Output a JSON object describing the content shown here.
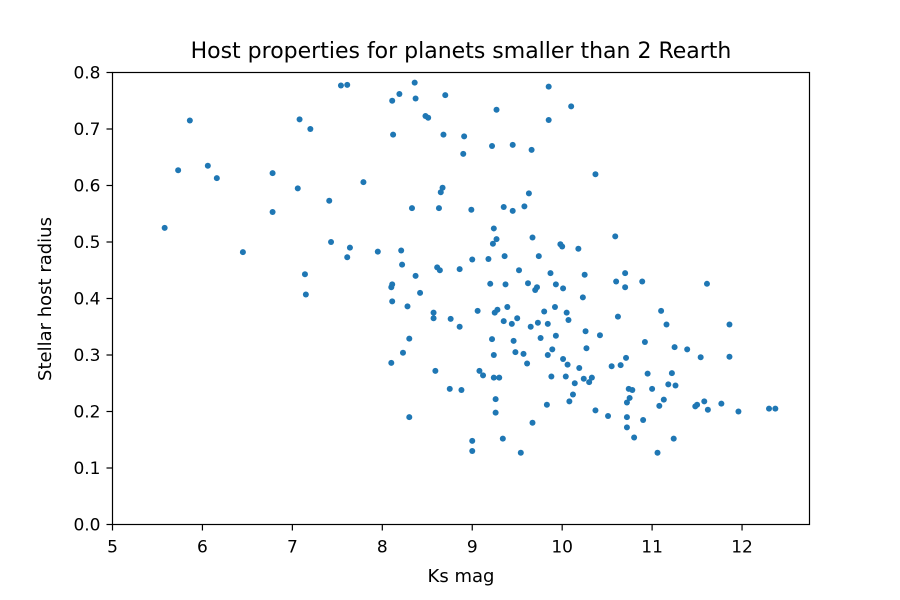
{
  "chart_data": {
    "type": "scatter",
    "title": "Host properties for planets smaller than 2 Rearth",
    "xlabel": "Ks mag",
    "ylabel": "Stellar host radius",
    "xlim": [
      5,
      12.75
    ],
    "ylim": [
      0,
      0.8
    ],
    "xticks": [
      5,
      6,
      7,
      8,
      9,
      10,
      11,
      12
    ],
    "yticks": [
      0.0,
      0.1,
      0.2,
      0.3,
      0.4,
      0.5,
      0.6,
      0.7,
      0.8
    ],
    "xtick_labels": [
      "5",
      "6",
      "7",
      "8",
      "9",
      "10",
      "11",
      "12"
    ],
    "ytick_labels": [
      "0.0",
      "0.1",
      "0.2",
      "0.3",
      "0.4",
      "0.5",
      "0.6",
      "0.7",
      "0.8"
    ],
    "grid": false,
    "color": "#1f77b4",
    "points": [
      [
        5.58,
        0.525
      ],
      [
        5.73,
        0.627
      ],
      [
        5.86,
        0.715
      ],
      [
        6.06,
        0.635
      ],
      [
        6.16,
        0.613
      ],
      [
        6.45,
        0.482
      ],
      [
        6.78,
        0.622
      ],
      [
        6.78,
        0.553
      ],
      [
        7.06,
        0.595
      ],
      [
        7.08,
        0.717
      ],
      [
        7.14,
        0.443
      ],
      [
        7.15,
        0.407
      ],
      [
        7.2,
        0.7
      ],
      [
        7.41,
        0.573
      ],
      [
        7.43,
        0.5
      ],
      [
        7.54,
        0.777
      ],
      [
        7.61,
        0.778
      ],
      [
        7.61,
        0.473
      ],
      [
        7.64,
        0.49
      ],
      [
        7.79,
        0.606
      ],
      [
        7.95,
        0.483
      ],
      [
        8.11,
        0.75
      ],
      [
        8.12,
        0.69
      ],
      [
        8.1,
        0.42
      ],
      [
        8.11,
        0.425
      ],
      [
        8.11,
        0.395
      ],
      [
        8.1,
        0.286
      ],
      [
        8.19,
        0.762
      ],
      [
        8.21,
        0.485
      ],
      [
        8.22,
        0.46
      ],
      [
        8.23,
        0.304
      ],
      [
        8.28,
        0.386
      ],
      [
        8.3,
        0.329
      ],
      [
        8.3,
        0.19
      ],
      [
        8.33,
        0.56
      ],
      [
        8.36,
        0.782
      ],
      [
        8.37,
        0.754
      ],
      [
        8.37,
        0.44
      ],
      [
        8.42,
        0.41
      ],
      [
        8.48,
        0.723
      ],
      [
        8.51,
        0.72
      ],
      [
        8.57,
        0.375
      ],
      [
        8.57,
        0.365
      ],
      [
        8.59,
        0.272
      ],
      [
        8.61,
        0.455
      ],
      [
        8.63,
        0.56
      ],
      [
        8.64,
        0.45
      ],
      [
        8.65,
        0.588
      ],
      [
        8.67,
        0.596
      ],
      [
        8.68,
        0.69
      ],
      [
        8.7,
        0.76
      ],
      [
        8.75,
        0.24
      ],
      [
        8.76,
        0.364
      ],
      [
        8.86,
        0.35
      ],
      [
        8.86,
        0.452
      ],
      [
        8.88,
        0.238
      ],
      [
        8.9,
        0.656
      ],
      [
        8.91,
        0.687
      ],
      [
        8.99,
        0.557
      ],
      [
        9.0,
        0.469
      ],
      [
        9.0,
        0.148
      ],
      [
        9.0,
        0.13
      ],
      [
        9.06,
        0.378
      ],
      [
        9.08,
        0.272
      ],
      [
        9.12,
        0.264
      ],
      [
        9.18,
        0.47
      ],
      [
        9.2,
        0.426
      ],
      [
        9.22,
        0.67
      ],
      [
        9.22,
        0.328
      ],
      [
        9.23,
        0.497
      ],
      [
        9.24,
        0.524
      ],
      [
        9.24,
        0.3
      ],
      [
        9.24,
        0.26
      ],
      [
        9.25,
        0.375
      ],
      [
        9.26,
        0.222
      ],
      [
        9.26,
        0.198
      ],
      [
        9.27,
        0.734
      ],
      [
        9.27,
        0.505
      ],
      [
        9.28,
        0.38
      ],
      [
        9.3,
        0.26
      ],
      [
        9.34,
        0.152
      ],
      [
        9.35,
        0.562
      ],
      [
        9.35,
        0.36
      ],
      [
        9.36,
        0.475
      ],
      [
        9.37,
        0.425
      ],
      [
        9.39,
        0.385
      ],
      [
        9.44,
        0.355
      ],
      [
        9.45,
        0.672
      ],
      [
        9.45,
        0.555
      ],
      [
        9.46,
        0.325
      ],
      [
        9.48,
        0.305
      ],
      [
        9.5,
        0.365
      ],
      [
        9.52,
        0.45
      ],
      [
        9.54,
        0.127
      ],
      [
        9.57,
        0.302
      ],
      [
        9.58,
        0.563
      ],
      [
        9.61,
        0.285
      ],
      [
        9.62,
        0.427
      ],
      [
        9.63,
        0.586
      ],
      [
        9.65,
        0.35
      ],
      [
        9.66,
        0.663
      ],
      [
        9.67,
        0.508
      ],
      [
        9.67,
        0.18
      ],
      [
        9.7,
        0.415
      ],
      [
        9.72,
        0.42
      ],
      [
        9.73,
        0.357
      ],
      [
        9.74,
        0.475
      ],
      [
        9.76,
        0.33
      ],
      [
        9.8,
        0.377
      ],
      [
        9.83,
        0.212
      ],
      [
        9.84,
        0.355
      ],
      [
        9.84,
        0.3
      ],
      [
        9.85,
        0.775
      ],
      [
        9.85,
        0.716
      ],
      [
        9.87,
        0.445
      ],
      [
        9.88,
        0.262
      ],
      [
        9.89,
        0.31
      ],
      [
        9.92,
        0.385
      ],
      [
        9.93,
        0.425
      ],
      [
        9.93,
        0.334
      ],
      [
        9.98,
        0.496
      ],
      [
        10.0,
        0.492
      ],
      [
        10.01,
        0.418
      ],
      [
        10.01,
        0.293
      ],
      [
        10.04,
        0.262
      ],
      [
        10.05,
        0.375
      ],
      [
        10.06,
        0.283
      ],
      [
        10.07,
        0.362
      ],
      [
        10.08,
        0.218
      ],
      [
        10.1,
        0.74
      ],
      [
        10.12,
        0.23
      ],
      [
        10.14,
        0.25
      ],
      [
        10.18,
        0.488
      ],
      [
        10.19,
        0.277
      ],
      [
        10.23,
        0.402
      ],
      [
        10.24,
        0.258
      ],
      [
        10.25,
        0.442
      ],
      [
        10.26,
        0.342
      ],
      [
        10.27,
        0.312
      ],
      [
        10.3,
        0.252
      ],
      [
        10.33,
        0.26
      ],
      [
        10.37,
        0.62
      ],
      [
        10.37,
        0.202
      ],
      [
        10.42,
        0.335
      ],
      [
        10.51,
        0.192
      ],
      [
        10.55,
        0.28
      ],
      [
        10.59,
        0.51
      ],
      [
        10.6,
        0.43
      ],
      [
        10.62,
        0.368
      ],
      [
        10.65,
        0.282
      ],
      [
        10.7,
        0.445
      ],
      [
        10.7,
        0.42
      ],
      [
        10.71,
        0.295
      ],
      [
        10.72,
        0.216
      ],
      [
        10.72,
        0.19
      ],
      [
        10.72,
        0.172
      ],
      [
        10.74,
        0.24
      ],
      [
        10.75,
        0.224
      ],
      [
        10.78,
        0.238
      ],
      [
        10.8,
        0.154
      ],
      [
        10.89,
        0.43
      ],
      [
        10.9,
        0.185
      ],
      [
        10.92,
        0.323
      ],
      [
        10.95,
        0.267
      ],
      [
        11.0,
        0.24
      ],
      [
        11.06,
        0.127
      ],
      [
        11.08,
        0.21
      ],
      [
        11.1,
        0.378
      ],
      [
        11.13,
        0.221
      ],
      [
        11.16,
        0.354
      ],
      [
        11.18,
        0.248
      ],
      [
        11.22,
        0.268
      ],
      [
        11.24,
        0.152
      ],
      [
        11.25,
        0.314
      ],
      [
        11.26,
        0.246
      ],
      [
        11.39,
        0.31
      ],
      [
        11.48,
        0.209
      ],
      [
        11.5,
        0.212
      ],
      [
        11.54,
        0.296
      ],
      [
        11.58,
        0.218
      ],
      [
        11.61,
        0.426
      ],
      [
        11.62,
        0.203
      ],
      [
        11.77,
        0.214
      ],
      [
        11.86,
        0.354
      ],
      [
        11.86,
        0.297
      ],
      [
        11.96,
        0.2
      ],
      [
        12.3,
        0.205
      ],
      [
        12.37,
        0.205
      ]
    ]
  }
}
